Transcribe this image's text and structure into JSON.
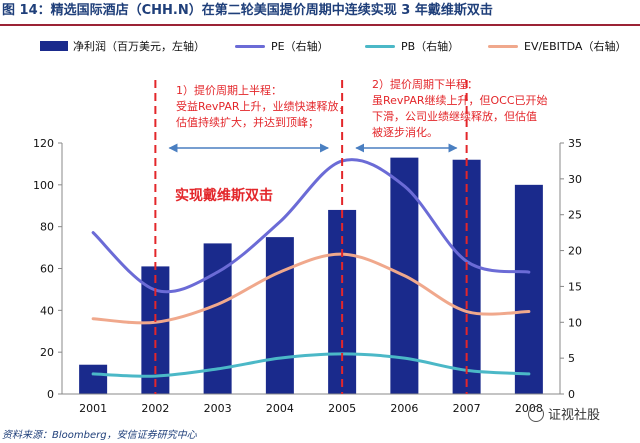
{
  "figure_title": "图 14：精选国际酒店（CHH.N）在第二轮美国提价周期中连续实现 3 年戴维斯双击",
  "source_note": "资料来源：Bloomberg，安信证券研究中心",
  "watermark_text": "证视社股",
  "chart_data": {
    "type": "bar+line",
    "categories": [
      "2001",
      "2002",
      "2003",
      "2004",
      "2005",
      "2006",
      "2007",
      "2008"
    ],
    "y_left": {
      "min": 0,
      "max": 120,
      "ticks": [
        0,
        20,
        40,
        60,
        80,
        100,
        120
      ]
    },
    "y_right": {
      "min": 0,
      "max": 35,
      "ticks": [
        0,
        5,
        10,
        15,
        20,
        25,
        30,
        35
      ]
    },
    "series": [
      {
        "name": "净利润（百万美元，左轴）",
        "type": "bar",
        "axis": "left",
        "color": "#1a2a8c",
        "values": [
          14,
          61,
          72,
          75,
          88,
          113,
          112,
          100
        ]
      },
      {
        "name": "PE（右轴）",
        "type": "line",
        "axis": "right",
        "color": "#6b6bd6",
        "values": [
          22.5,
          14.5,
          17,
          24,
          32.5,
          29,
          18.5,
          17
        ]
      },
      {
        "name": "PB（右轴）",
        "type": "line",
        "axis": "right",
        "color": "#4bb8c7",
        "values": [
          2.8,
          2.5,
          3.5,
          5,
          5.6,
          5,
          3.3,
          2.8
        ]
      },
      {
        "name": "EV/EBITDA（右轴）",
        "type": "line",
        "axis": "right",
        "color": "#f0a88c",
        "values": [
          10.5,
          10,
          12.5,
          17,
          19.5,
          16.5,
          11.5,
          11.5
        ]
      }
    ],
    "annotations": [
      {
        "id": "phase1",
        "title": "1）提价周期上半程：",
        "lines": [
          "受益RevPAR上升，业绩快速释放，",
          "估值持续扩大，并达到顶峰；"
        ]
      },
      {
        "id": "phase2",
        "title": "2）提价周期下半程：",
        "lines": [
          "虽RevPAR继续上升，但OCC已开始",
          "下滑，公司业绩继续释放，但估值",
          "被逐步消化。"
        ]
      },
      {
        "id": "davis",
        "text": "实现戴维斯双击"
      }
    ]
  }
}
